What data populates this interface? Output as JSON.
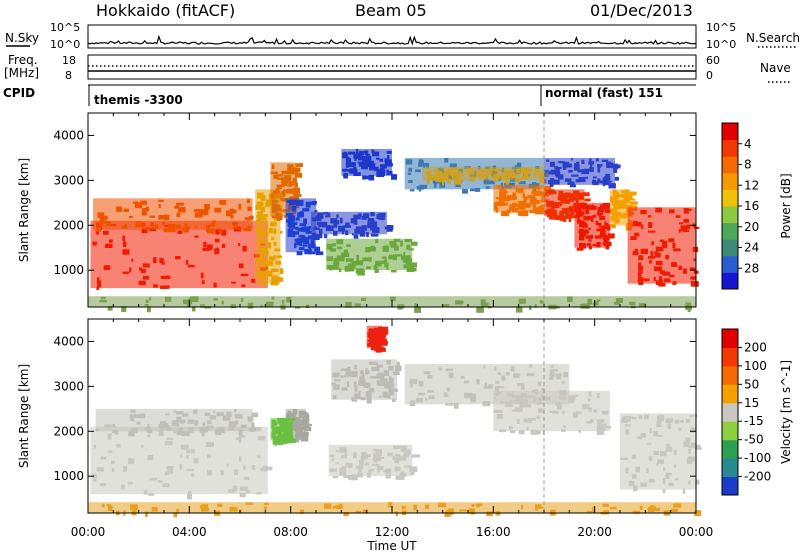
{
  "header": {
    "station": "Hokkaido (fitACF)",
    "beam": "Beam 05",
    "date": "01/Dec/2013"
  },
  "top_panels": {
    "nsky_label": "N.Sky",
    "nsky_ticks": [
      "10^5",
      "10^0"
    ],
    "nsearch_label": "N.Search",
    "freq_label": "Freq.",
    "freq_unit": "[MHz]",
    "freq_ticks": [
      "18",
      "8"
    ],
    "nave_label": "Nave",
    "nave_ticks": [
      "60",
      "0"
    ],
    "cpid_label": "CPID",
    "cpid_segments": [
      {
        "text": "themis -3300",
        "start": "00:00"
      },
      {
        "text": "normal (fast) 151",
        "start": "18:00"
      }
    ]
  },
  "chart_data": [
    {
      "type": "heatmap",
      "title": "Power",
      "ylabel": "Slant Range [km]",
      "xlabel": "",
      "x_ticks": [
        "00:00",
        "04:00",
        "08:00",
        "12:00",
        "16:00",
        "20:00",
        "00:00"
      ],
      "xlim": [
        0,
        24
      ],
      "ylim": [
        180,
        4500
      ],
      "y_ticks": [
        1000,
        2000,
        3000,
        4000
      ],
      "colorbar": {
        "label": "Power [dB]",
        "ticks": [
          "4",
          "8",
          "12",
          "16",
          "20",
          "24",
          "28"
        ],
        "colors": [
          "#1414d2",
          "#2a5dd0",
          "#3d8a76",
          "#4fa85a",
          "#8cc840",
          "#f2c20a",
          "#f59a00",
          "#f56a00",
          "#f23a00",
          "#e00000"
        ]
      },
      "regions": [
        {
          "x0": 0.1,
          "x1": 7.1,
          "y0": 600,
          "y1": 2100,
          "color": "#f21c00"
        },
        {
          "x0": 0.2,
          "x1": 6.5,
          "y0": 1900,
          "y1": 2600,
          "color": "#f05200"
        },
        {
          "x0": 6.6,
          "x1": 7.6,
          "y0": 700,
          "y1": 2800,
          "color": "#e8a000"
        },
        {
          "x0": 7.2,
          "x1": 8.2,
          "y0": 2200,
          "y1": 3400,
          "color": "#e06a00"
        },
        {
          "x0": 7.8,
          "x1": 9.0,
          "y0": 1400,
          "y1": 2600,
          "color": "#1f3fd0"
        },
        {
          "x0": 8.8,
          "x1": 11.8,
          "y0": 1800,
          "y1": 2300,
          "color": "#2a3fc8"
        },
        {
          "x0": 9.4,
          "x1": 12.8,
          "y0": 1000,
          "y1": 1700,
          "color": "#6aa83c"
        },
        {
          "x0": 10.0,
          "x1": 12.0,
          "y0": 3100,
          "y1": 3700,
          "color": "#1d38c8"
        },
        {
          "x0": 12.5,
          "x1": 18.0,
          "y0": 2800,
          "y1": 3500,
          "color": "#3a7ab0"
        },
        {
          "x0": 13.2,
          "x1": 18.0,
          "y0": 3000,
          "y1": 3300,
          "color": "#d0a020"
        },
        {
          "x0": 16.0,
          "x1": 18.0,
          "y0": 2300,
          "y1": 2900,
          "color": "#f07000"
        },
        {
          "x0": 18.0,
          "x1": 19.6,
          "y0": 2200,
          "y1": 2800,
          "color": "#f03000"
        },
        {
          "x0": 19.2,
          "x1": 20.6,
          "y0": 1500,
          "y1": 2500,
          "color": "#f01800"
        },
        {
          "x0": 20.6,
          "x1": 21.4,
          "y0": 2000,
          "y1": 2800,
          "color": "#f5a000"
        },
        {
          "x0": 21.3,
          "x1": 24.0,
          "y0": 700,
          "y1": 2400,
          "color": "#f01c00"
        },
        {
          "x0": 18.0,
          "x1": 20.8,
          "y0": 2900,
          "y1": 3500,
          "color": "#2a3fc8"
        },
        {
          "x0": 0.0,
          "x1": 24.0,
          "y0": 180,
          "y1": 420,
          "color": "#7aa050"
        }
      ]
    },
    {
      "type": "heatmap",
      "title": "Velocity",
      "ylabel": "Slant Range [km]",
      "xlabel": "Time UT",
      "x_ticks": [
        "00:00",
        "04:00",
        "08:00",
        "12:00",
        "16:00",
        "20:00",
        "00:00"
      ],
      "xlim": [
        0,
        24
      ],
      "ylim": [
        180,
        4500
      ],
      "y_ticks": [
        1000,
        2000,
        3000,
        4000
      ],
      "colorbar": {
        "label": "Velocity [m s^-1]",
        "ticks": [
          "200",
          "100",
          "50",
          "15",
          "-15",
          "-50",
          "-100",
          "-200"
        ],
        "colors": [
          "#1a3cc8",
          "#2a8a90",
          "#2aa050",
          "#8cd040",
          "#c8c8c0",
          "#f5a000",
          "#f56a00",
          "#f23a00",
          "#e00000"
        ]
      },
      "regions": [
        {
          "x0": 0.1,
          "x1": 7.1,
          "y0": 600,
          "y1": 2100,
          "color": "#c8c8c0"
        },
        {
          "x0": 0.3,
          "x1": 6.5,
          "y0": 2000,
          "y1": 2500,
          "color": "#c0c0b8"
        },
        {
          "x0": 7.8,
          "x1": 8.6,
          "y0": 1800,
          "y1": 2500,
          "color": "#a8a8a0"
        },
        {
          "x0": 9.5,
          "x1": 12.8,
          "y0": 1000,
          "y1": 1700,
          "color": "#c8c8c0"
        },
        {
          "x0": 9.6,
          "x1": 12.2,
          "y0": 2700,
          "y1": 3600,
          "color": "#bcbcb4"
        },
        {
          "x0": 12.5,
          "x1": 19.0,
          "y0": 2600,
          "y1": 3500,
          "color": "#c4c4bc"
        },
        {
          "x0": 16.0,
          "x1": 20.6,
          "y0": 2000,
          "y1": 2900,
          "color": "#c8c8c0"
        },
        {
          "x0": 21.0,
          "x1": 24.0,
          "y0": 700,
          "y1": 2400,
          "color": "#c8c8c0"
        },
        {
          "x0": 11.0,
          "x1": 11.6,
          "y0": 3850,
          "y1": 4350,
          "color": "#f02010"
        },
        {
          "x0": 7.2,
          "x1": 7.9,
          "y0": 1800,
          "y1": 2300,
          "color": "#6ac040"
        },
        {
          "x0": 0.0,
          "x1": 24.0,
          "y0": 180,
          "y1": 420,
          "color": "#e8a020"
        }
      ]
    }
  ]
}
